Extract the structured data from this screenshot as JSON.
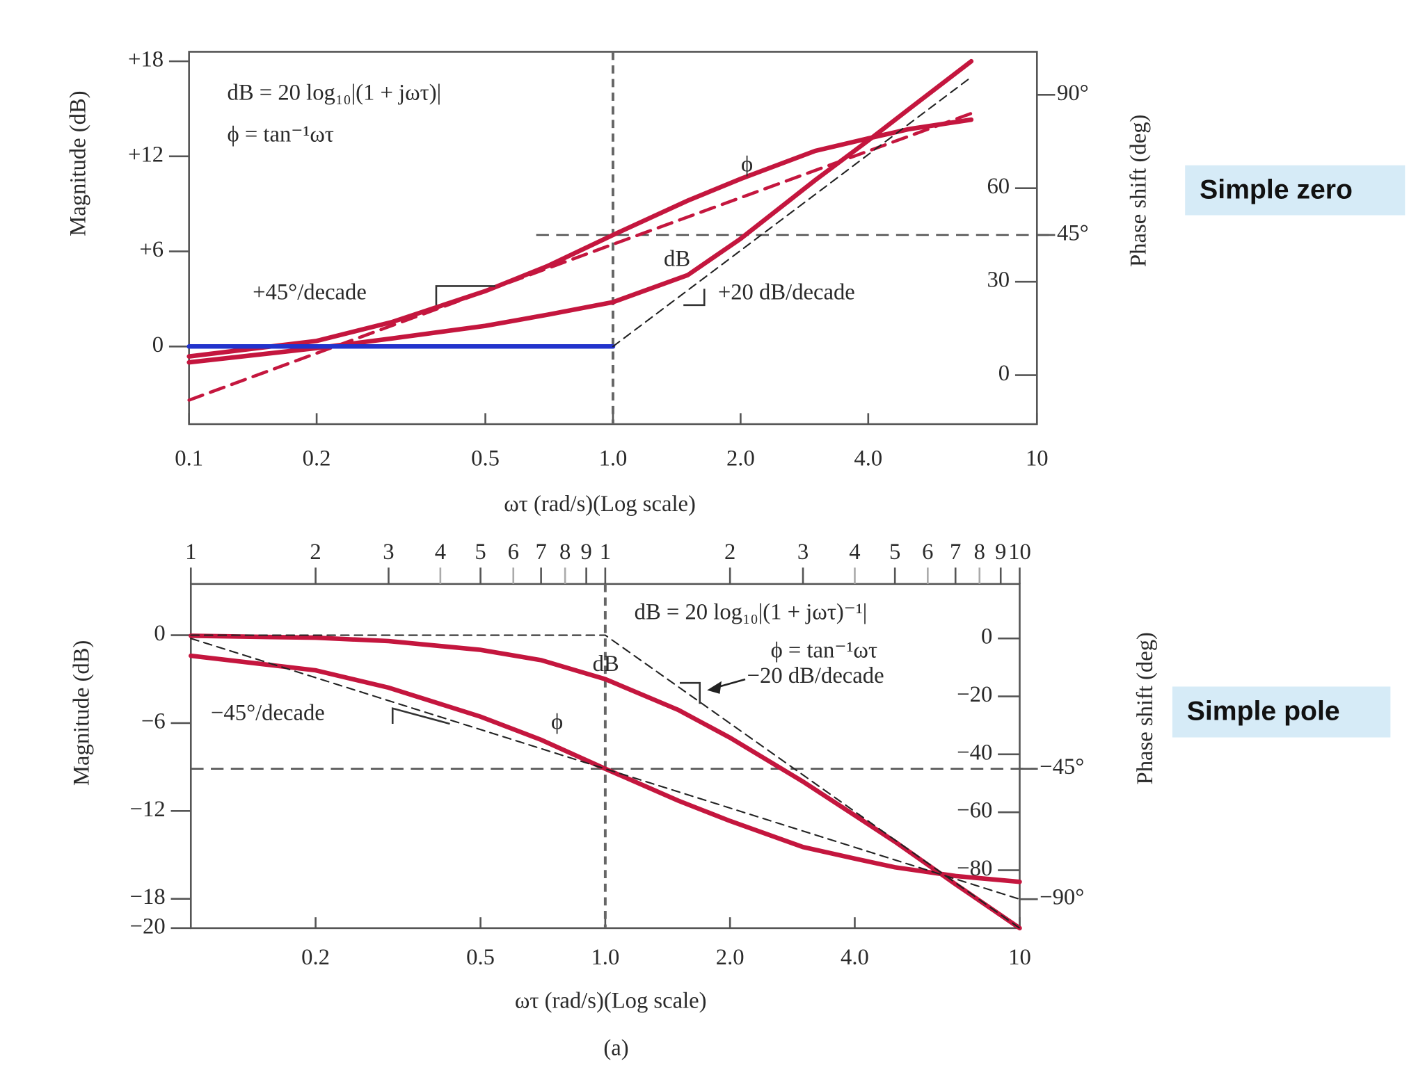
{
  "chart_data": [
    {
      "type": "line",
      "xlog": true,
      "side_label": "Simple zero",
      "xlabel": "ωτ (rad/s)(Log scale)",
      "ylabel": "Magnitude (dB)",
      "y2label": "Phase shift (deg)",
      "annotations": [
        "dB = 20 log₁₀|(1 + jωτ)|",
        "ϕ = tan⁻¹ωτ",
        "ϕ",
        "dB",
        "+45°/decade",
        "+20 dB/decade"
      ],
      "xlim": [
        0.1,
        10
      ],
      "xticks": [
        0.1,
        0.2,
        0.5,
        {
          "value": 1,
          "label": "1.0"
        },
        {
          "value": 2,
          "label": "2.0"
        },
        {
          "value": 4,
          "label": "4.0"
        },
        10
      ],
      "ylim": [
        -4.9,
        18.6
      ],
      "yticks": [
        {
          "value": 18,
          "label": "+18"
        },
        {
          "value": 12,
          "label": "+12"
        },
        {
          "value": 6,
          "label": "+6"
        },
        0
      ],
      "y2lim": [
        -15.7,
        103.8
      ],
      "y2ticks": [
        0,
        30,
        60,
        {
          "value": 90,
          "label": "90°"
        },
        {
          "value": 45,
          "label": "45°"
        }
      ],
      "series": [
        {
          "color": "#c4163e",
          "style": "solid",
          "x": [
            0.1,
            0.2,
            0.3,
            0.5,
            0.7,
            1,
            1.5,
            2,
            3,
            4,
            5,
            7
          ],
          "values": [
            -1.0,
            -0.1,
            0.5,
            1.3,
            2.0,
            2.8,
            4.5,
            6.8,
            10.5,
            13,
            15,
            18
          ]
        },
        {
          "color": "#c4163e",
          "style": "solid",
          "axis": "y2",
          "x": [
            0.1,
            0.2,
            0.3,
            0.5,
            0.7,
            1,
            1.5,
            2,
            3,
            4,
            5,
            7
          ],
          "values": [
            6,
            11,
            17,
            27,
            35,
            45,
            56,
            63,
            72,
            76,
            79,
            82
          ]
        },
        {
          "color": "#c4163e",
          "style": "dashed",
          "axis": "y2",
          "x": [
            0.1,
            1,
            7
          ],
          "values": [
            -8,
            42,
            84
          ]
        },
        {
          "color": "#2233cc",
          "style": "solid",
          "x": [
            0.1,
            1
          ],
          "values": [
            0,
            0
          ]
        },
        {
          "color": "#222222",
          "style": "dashed",
          "x": [
            1,
            7
          ],
          "values": [
            0,
            17
          ]
        }
      ]
    },
    {
      "type": "line",
      "xlog": true,
      "side_label": "Simple pole",
      "caption": "(a)",
      "xlabel": "ωτ (rad/s)(Log scale)",
      "ylabel": "Magnitude (dB)",
      "y2label": "Phase shift (deg)",
      "annotations": [
        "dB = 20 log₁₀|(1 + jωτ)⁻¹|",
        "ϕ = tan⁻¹ωτ",
        "dB",
        "ϕ",
        "−20 dB/decade",
        "−45°/decade"
      ],
      "xlim": [
        0.1,
        10
      ],
      "xticks": [
        0.2,
        0.5,
        {
          "value": 1,
          "label": "1.0"
        },
        {
          "value": 2,
          "label": "2.0"
        },
        {
          "value": 4,
          "label": "4.0"
        },
        10
      ],
      "x2ticks": [
        {
          "value": 0.1,
          "label": "1"
        },
        {
          "value": 0.2,
          "label": "2"
        },
        {
          "value": 0.3,
          "label": "3"
        },
        {
          "value": 0.4,
          "label": "4"
        },
        {
          "value": 0.5,
          "label": "5"
        },
        {
          "value": 0.6,
          "label": "6"
        },
        {
          "value": 0.7,
          "label": "7"
        },
        {
          "value": 0.8,
          "label": "8"
        },
        {
          "value": 0.9,
          "label": "9"
        },
        {
          "value": 1,
          "label": "1"
        },
        {
          "value": 2,
          "label": "2"
        },
        {
          "value": 3,
          "label": "3"
        },
        {
          "value": 4,
          "label": "4"
        },
        {
          "value": 5,
          "label": "5"
        },
        {
          "value": 6,
          "label": "6"
        },
        {
          "value": 7,
          "label": "7"
        },
        {
          "value": 8,
          "label": "8"
        },
        {
          "value": 9,
          "label": "9"
        },
        10
      ],
      "ylim": [
        -20,
        3.5
      ],
      "yticks": [
        0,
        {
          "value": -6,
          "label": "−6"
        },
        {
          "value": -12,
          "label": "−12"
        },
        {
          "value": -18,
          "label": "−18"
        },
        {
          "value": -20,
          "label": "−20"
        }
      ],
      "y2lim": [
        -100,
        18.8
      ],
      "y2ticks": [
        0,
        {
          "value": -20,
          "label": "−20"
        },
        {
          "value": -40,
          "label": "−40"
        },
        {
          "value": -60,
          "label": "−60"
        },
        {
          "value": -80,
          "label": "−80"
        },
        {
          "value": -45,
          "label": "−45°"
        },
        {
          "value": -90,
          "label": "−90°"
        }
      ],
      "series": [
        {
          "color": "#c4163e",
          "style": "solid",
          "x": [
            0.1,
            0.2,
            0.3,
            0.5,
            0.7,
            1,
            1.5,
            2,
            3,
            4,
            5,
            7,
            10
          ],
          "values": [
            -0.04,
            -0.17,
            -0.4,
            -1,
            -1.7,
            -3,
            -5.1,
            -7,
            -10,
            -12.3,
            -14.1,
            -17,
            -20
          ]
        },
        {
          "color": "#c4163e",
          "style": "solid",
          "axis": "y2",
          "x": [
            0.1,
            0.2,
            0.3,
            0.5,
            0.7,
            1,
            1.5,
            2,
            3,
            4,
            5,
            7,
            10
          ],
          "values": [
            -6,
            -11,
            -17,
            -27,
            -35,
            -45,
            -56,
            -63,
            -72,
            -76,
            -79,
            -82,
            -84
          ]
        },
        {
          "color": "#222222",
          "style": "dashed",
          "x": [
            0.1,
            1,
            10
          ],
          "values": [
            0,
            0,
            -20
          ]
        },
        {
          "color": "#222222",
          "style": "dashed",
          "axis": "y2",
          "x": [
            0.1,
            10
          ],
          "values": [
            0,
            -90
          ]
        }
      ]
    }
  ]
}
